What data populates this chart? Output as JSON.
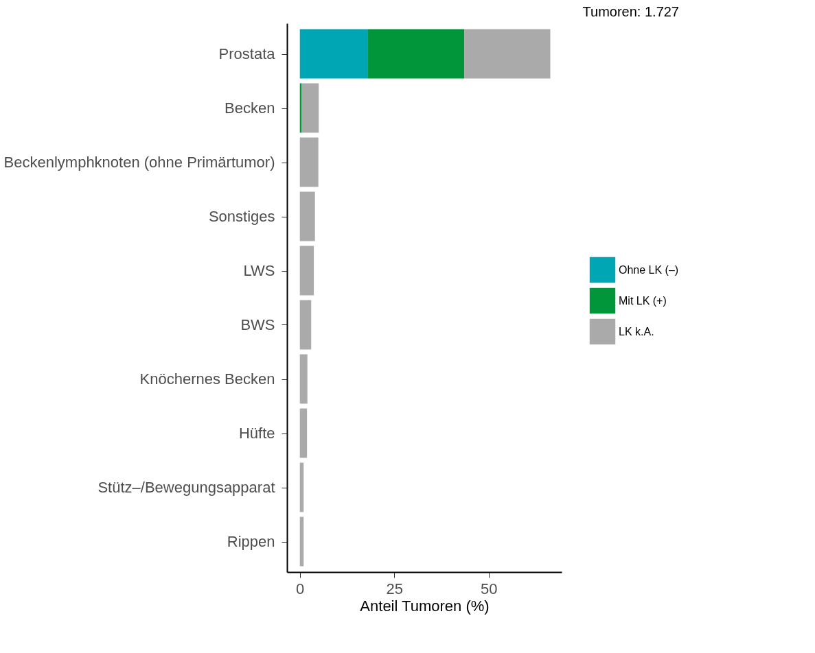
{
  "chart_data": {
    "type": "bar",
    "orientation": "horizontal",
    "stacked": true,
    "title": "Tumoren:  1.727",
    "xlabel": "Anteil Tumoren (%)",
    "categories": [
      "Prostata",
      "Becken",
      "Beckenlymphknoten (ohne Primärtumor)",
      "Sonstiges",
      "LWS",
      "BWS",
      "Knöchernes Becken",
      "Hüfte",
      "Stütz–/Bewegungsapparat",
      "Rippen"
    ],
    "series": [
      {
        "name": "Ohne LK (–)",
        "color": "#00a6b4",
        "values": [
          17.9,
          0,
          0,
          0,
          0,
          0,
          0,
          0,
          0,
          0
        ]
      },
      {
        "name": "Mit LK (+)",
        "color": "#009639",
        "values": [
          25.6,
          0.5,
          0,
          0,
          0,
          0,
          0,
          0,
          0,
          0
        ]
      },
      {
        "name": "LK k.A.",
        "color": "#aaaaaa",
        "values": [
          22.8,
          4.5,
          4.9,
          4.0,
          3.7,
          3.0,
          2.0,
          1.9,
          1.0,
          1.0
        ]
      }
    ],
    "xlim": [
      -3.4,
      69.3
    ],
    "xticks": [
      0,
      25,
      50
    ],
    "grid": false,
    "legend": "right"
  }
}
